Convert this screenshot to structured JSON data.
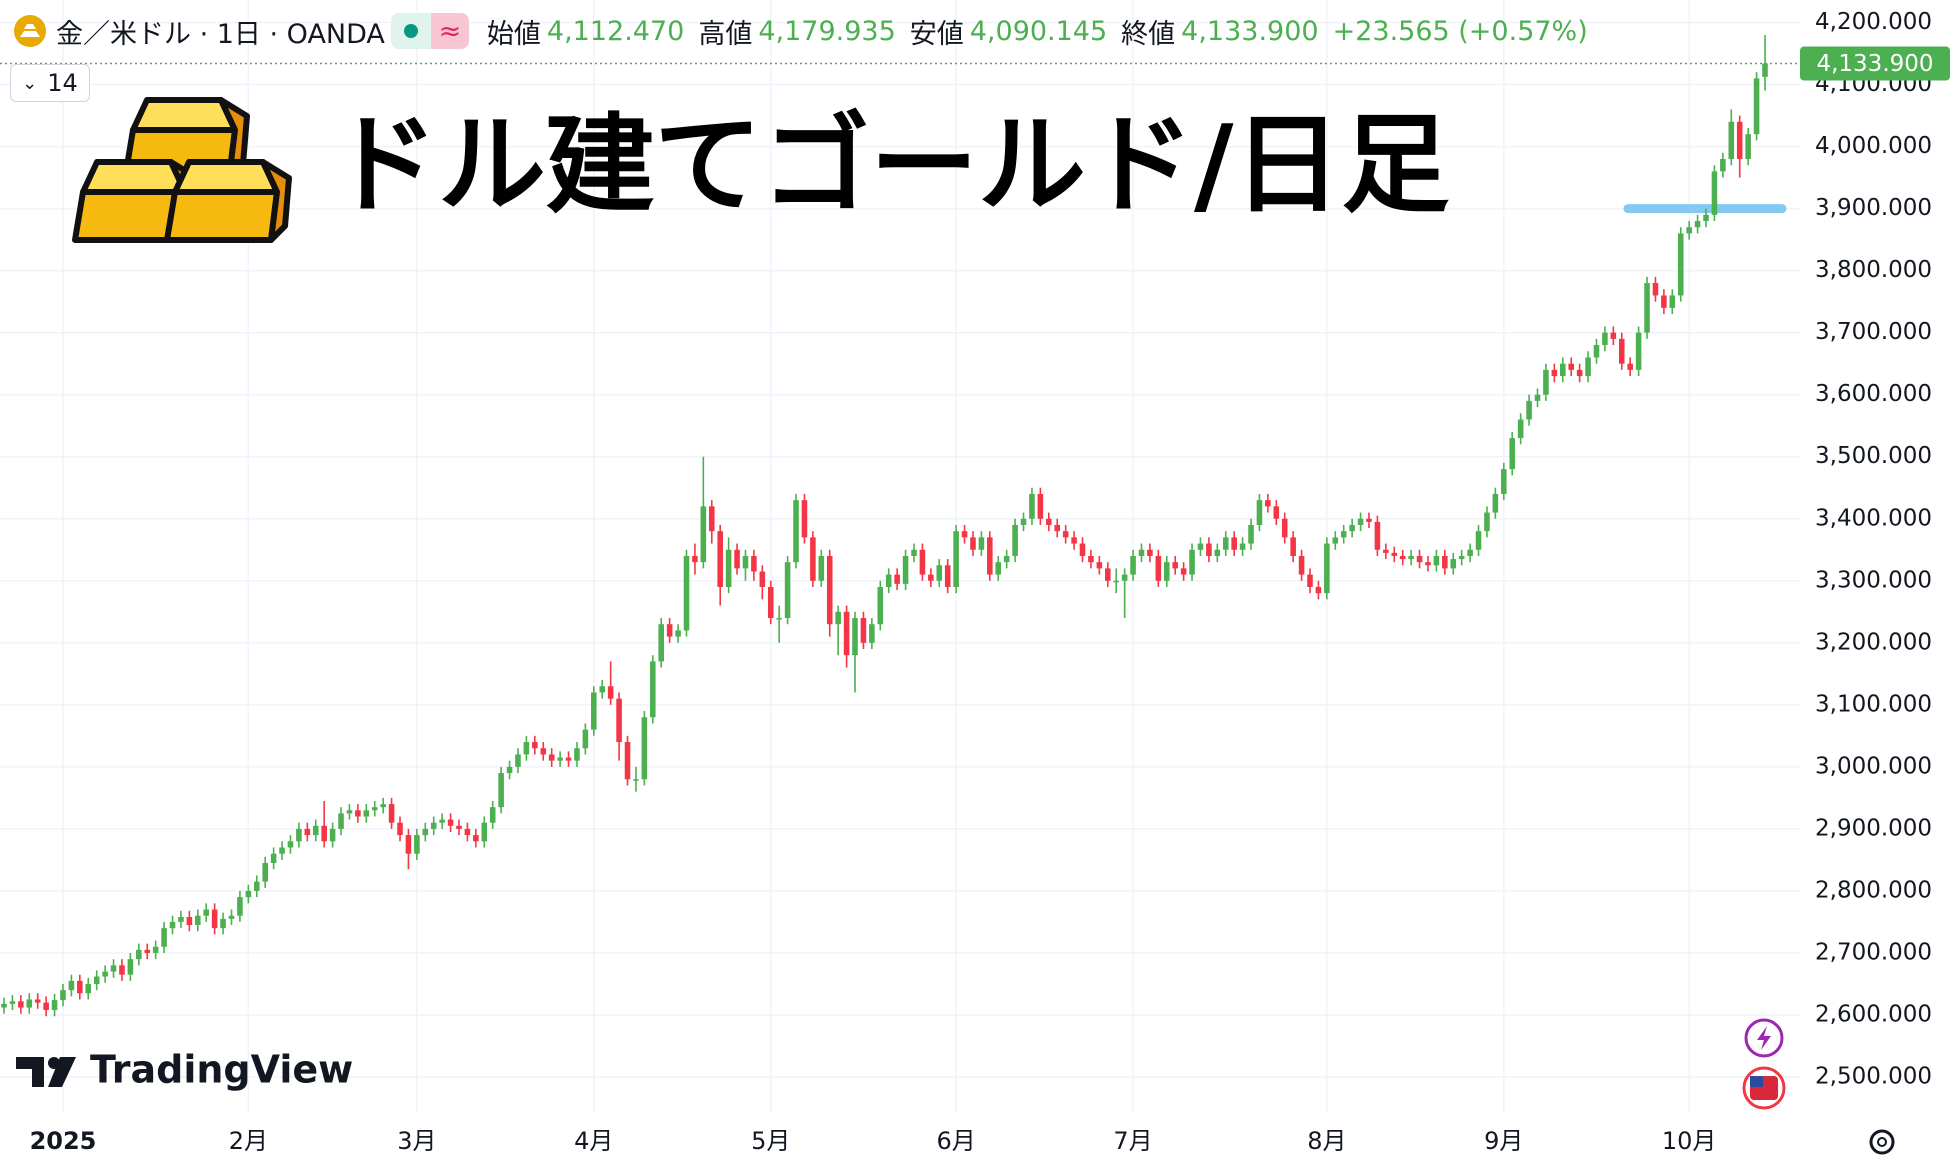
{
  "header": {
    "symbol": "金／米ドル · 1日 · OANDA",
    "badge": "≈",
    "interval": "14",
    "open_label": "始値",
    "open": "4,112.470",
    "high_label": "高値",
    "high": "4,179.935",
    "low_label": "安値",
    "low": "4,090.145",
    "close_label": "終値",
    "close": "4,133.900",
    "change": "+23.565 (+0.57%)"
  },
  "overlay_title": "ドル建てゴールド/日足",
  "logo": "TradingView",
  "chart_data": {
    "type": "candlestick",
    "up_color": "#4caf50",
    "down_color": "#f23645",
    "grid": true,
    "last_price_label": "4,133.900",
    "hline": 3900,
    "hline_color": "#85c8f2",
    "categories": [
      null,
      null,
      null,
      null,
      null,
      null,
      null,
      "2025",
      null,
      null,
      null,
      null,
      null,
      null,
      null,
      null,
      null,
      null,
      null,
      null,
      null,
      null,
      null,
      null,
      null,
      null,
      null,
      null,
      null,
      "2月",
      null,
      null,
      null,
      null,
      null,
      null,
      null,
      null,
      null,
      null,
      null,
      null,
      null,
      null,
      null,
      null,
      null,
      null,
      null,
      "3月",
      null,
      null,
      null,
      null,
      null,
      null,
      null,
      null,
      null,
      null,
      null,
      null,
      null,
      null,
      null,
      null,
      null,
      null,
      null,
      null,
      "4月",
      null,
      null,
      null,
      null,
      null,
      null,
      null,
      null,
      null,
      null,
      null,
      null,
      null,
      null,
      null,
      null,
      null,
      null,
      null,
      null,
      "5月",
      null,
      null,
      null,
      null,
      null,
      null,
      null,
      null,
      null,
      null,
      null,
      null,
      null,
      null,
      null,
      null,
      null,
      null,
      null,
      null,
      null,
      "6月",
      null,
      null,
      null,
      null,
      null,
      null,
      null,
      null,
      null,
      null,
      null,
      null,
      null,
      null,
      null,
      null,
      null,
      null,
      null,
      null,
      "7月",
      null,
      null,
      null,
      null,
      null,
      null,
      null,
      null,
      null,
      null,
      null,
      null,
      null,
      null,
      null,
      null,
      null,
      null,
      null,
      null,
      null,
      null,
      "8月",
      null,
      null,
      null,
      null,
      null,
      null,
      null,
      null,
      null,
      null,
      null,
      null,
      null,
      null,
      null,
      null,
      null,
      null,
      null,
      null,
      "9月",
      null,
      null,
      null,
      null,
      null,
      null,
      null,
      null,
      null,
      null,
      null,
      null,
      null,
      null,
      null,
      null,
      null,
      null,
      null,
      null,
      null,
      "10月",
      null,
      null,
      null,
      null,
      null,
      null,
      null,
      null,
      null
    ],
    "open": [
      2612,
      2618,
      2622,
      2612,
      2625,
      2620,
      2608,
      2624,
      2640,
      2655,
      2635,
      2650,
      2662,
      2670,
      2680,
      2665,
      2690,
      2705,
      2700,
      2710,
      2740,
      2750,
      2758,
      2745,
      2760,
      2770,
      2740,
      2755,
      2760,
      2790,
      2800,
      2815,
      2845,
      2860,
      2870,
      2880,
      2900,
      2890,
      2905,
      2880,
      2900,
      2925,
      2930,
      2920,
      2930,
      2935,
      2940,
      2910,
      2890,
      2860,
      2890,
      2900,
      2910,
      2915,
      2905,
      2900,
      2890,
      2880,
      2910,
      2935,
      2990,
      3000,
      3020,
      3040,
      3030,
      3020,
      3010,
      3015,
      3010,
      3030,
      3060,
      3120,
      3130,
      3110,
      3040,
      2980,
      2980,
      3080,
      3170,
      3230,
      3210,
      3220,
      3340,
      3330,
      3420,
      3380,
      3290,
      3350,
      3320,
      3340,
      3315,
      3290,
      3240,
      3240,
      3330,
      3430,
      3370,
      3300,
      3340,
      3230,
      3250,
      3180,
      3240,
      3200,
      3230,
      3290,
      3310,
      3295,
      3340,
      3350,
      3310,
      3300,
      3325,
      3290,
      3380,
      3370,
      3350,
      3370,
      3310,
      3330,
      3340,
      3390,
      3400,
      3440,
      3400,
      3390,
      3380,
      3370,
      3360,
      3340,
      3330,
      3320,
      3300,
      3300,
      3310,
      3340,
      3350,
      3340,
      3300,
      3330,
      3320,
      3310,
      3350,
      3360,
      3340,
      3350,
      3370,
      3350,
      3360,
      3390,
      3430,
      3420,
      3400,
      3370,
      3340,
      3310,
      3290,
      3280,
      3360,
      3370,
      3380,
      3390,
      3400,
      3395,
      3350,
      3345,
      3340,
      3335,
      3340,
      3330,
      3325,
      3340,
      3320,
      3335,
      3340,
      3350,
      3380,
      3410,
      3440,
      3480,
      3530,
      3560,
      3590,
      3600,
      3640,
      3630,
      3650,
      3640,
      3630,
      3660,
      3680,
      3700,
      3690,
      3650,
      3640,
      3700,
      3780,
      3760,
      3740,
      3760,
      3860,
      3870,
      3880,
      3890,
      3960,
      3980,
      4040,
      3980,
      4020,
      4112.47
    ],
    "high": [
      2628,
      2632,
      2632,
      2635,
      2635,
      2630,
      2634,
      2650,
      2665,
      2665,
      2660,
      2672,
      2680,
      2690,
      2690,
      2700,
      2715,
      2715,
      2720,
      2750,
      2760,
      2768,
      2768,
      2770,
      2780,
      2780,
      2765,
      2770,
      2800,
      2810,
      2825,
      2855,
      2870,
      2880,
      2890,
      2910,
      2910,
      2915,
      2945,
      2910,
      2935,
      2940,
      2940,
      2940,
      2945,
      2950,
      2950,
      2920,
      2900,
      2900,
      2910,
      2920,
      2925,
      2925,
      2915,
      2910,
      2900,
      2920,
      2945,
      3000,
      3010,
      3030,
      3050,
      3050,
      3040,
      3030,
      3025,
      3025,
      3040,
      3070,
      3130,
      3140,
      3170,
      3120,
      3050,
      3000,
      3090,
      3180,
      3240,
      3240,
      3230,
      3350,
      3360,
      3500,
      3430,
      3390,
      3370,
      3360,
      3350,
      3350,
      3325,
      3300,
      3260,
      3340,
      3440,
      3440,
      3380,
      3350,
      3350,
      3260,
      3260,
      3250,
      3250,
      3240,
      3300,
      3320,
      3320,
      3350,
      3360,
      3360,
      3320,
      3335,
      3335,
      3390,
      3390,
      3380,
      3380,
      3380,
      3340,
      3350,
      3400,
      3410,
      3450,
      3450,
      3410,
      3400,
      3390,
      3380,
      3370,
      3350,
      3340,
      3330,
      3320,
      3320,
      3350,
      3360,
      3360,
      3350,
      3340,
      3340,
      3330,
      3360,
      3370,
      3370,
      3360,
      3380,
      3380,
      3370,
      3400,
      3440,
      3440,
      3430,
      3410,
      3380,
      3350,
      3320,
      3300,
      3370,
      3380,
      3390,
      3400,
      3410,
      3410,
      3405,
      3360,
      3355,
      3350,
      3350,
      3350,
      3340,
      3350,
      3350,
      3345,
      3350,
      3360,
      3390,
      3420,
      3450,
      3490,
      3540,
      3570,
      3600,
      3610,
      3650,
      3650,
      3660,
      3660,
      3650,
      3670,
      3690,
      3710,
      3710,
      3700,
      3660,
      3710,
      3790,
      3790,
      3770,
      3770,
      3870,
      3880,
      3890,
      3900,
      3970,
      3990,
      4060,
      4050,
      4030,
      4120,
      4179.935
    ],
    "low": [
      2602,
      2608,
      2602,
      2602,
      2610,
      2598,
      2598,
      2614,
      2630,
      2625,
      2625,
      2640,
      2652,
      2660,
      2655,
      2655,
      2680,
      2690,
      2690,
      2700,
      2730,
      2740,
      2735,
      2735,
      2750,
      2730,
      2730,
      2745,
      2750,
      2780,
      2790,
      2805,
      2835,
      2850,
      2860,
      2870,
      2880,
      2880,
      2870,
      2870,
      2890,
      2915,
      2910,
      2910,
      2920,
      2925,
      2900,
      2880,
      2835,
      2850,
      2880,
      2890,
      2900,
      2895,
      2890,
      2880,
      2870,
      2870,
      2900,
      2925,
      2980,
      2990,
      3010,
      3020,
      3010,
      3000,
      3000,
      3000,
      3000,
      3020,
      3050,
      3110,
      3100,
      3010,
      2970,
      2960,
      2970,
      3070,
      3160,
      3200,
      3200,
      3210,
      3310,
      3320,
      3360,
      3260,
      3280,
      3310,
      3300,
      3300,
      3270,
      3230,
      3200,
      3230,
      3320,
      3360,
      3290,
      3290,
      3210,
      3180,
      3160,
      3120,
      3190,
      3190,
      3220,
      3280,
      3285,
      3285,
      3330,
      3300,
      3290,
      3290,
      3280,
      3280,
      3360,
      3340,
      3340,
      3300,
      3300,
      3320,
      3330,
      3380,
      3390,
      3390,
      3380,
      3370,
      3360,
      3350,
      3330,
      3320,
      3310,
      3290,
      3280,
      3240,
      3300,
      3330,
      3330,
      3290,
      3290,
      3310,
      3300,
      3300,
      3340,
      3330,
      3330,
      3340,
      3340,
      3340,
      3350,
      3380,
      3410,
      3390,
      3360,
      3330,
      3300,
      3280,
      3270,
      3270,
      3350,
      3360,
      3370,
      3380,
      3385,
      3340,
      3335,
      3330,
      3325,
      3325,
      3320,
      3315,
      3315,
      3310,
      3310,
      3325,
      3330,
      3340,
      3370,
      3400,
      3430,
      3470,
      3520,
      3550,
      3580,
      3590,
      3620,
      3620,
      3630,
      3620,
      3620,
      3650,
      3670,
      3680,
      3640,
      3630,
      3630,
      3690,
      3750,
      3730,
      3730,
      3750,
      3850,
      3860,
      3870,
      3880,
      3950,
      3970,
      3950,
      3970,
      4010,
      4090.145
    ],
    "close": [
      2618,
      2622,
      2612,
      2625,
      2620,
      2608,
      2624,
      2640,
      2655,
      2635,
      2650,
      2662,
      2670,
      2680,
      2665,
      2690,
      2705,
      2700,
      2710,
      2740,
      2750,
      2758,
      2745,
      2760,
      2770,
      2740,
      2755,
      2760,
      2790,
      2800,
      2815,
      2845,
      2860,
      2870,
      2880,
      2900,
      2890,
      2905,
      2880,
      2900,
      2925,
      2930,
      2920,
      2930,
      2935,
      2940,
      2910,
      2890,
      2860,
      2890,
      2900,
      2910,
      2915,
      2905,
      2900,
      2890,
      2880,
      2910,
      2935,
      2990,
      3000,
      3020,
      3040,
      3030,
      3020,
      3010,
      3015,
      3010,
      3030,
      3060,
      3120,
      3130,
      3110,
      3040,
      2980,
      2980,
      3080,
      3170,
      3230,
      3210,
      3220,
      3340,
      3330,
      3420,
      3380,
      3290,
      3350,
      3320,
      3340,
      3315,
      3290,
      3240,
      3240,
      3330,
      3430,
      3370,
      3300,
      3340,
      3230,
      3250,
      3180,
      3240,
      3200,
      3230,
      3290,
      3310,
      3295,
      3340,
      3350,
      3310,
      3300,
      3325,
      3290,
      3380,
      3370,
      3350,
      3370,
      3310,
      3330,
      3340,
      3390,
      3400,
      3440,
      3400,
      3390,
      3380,
      3370,
      3360,
      3340,
      3330,
      3320,
      3300,
      3300,
      3310,
      3340,
      3350,
      3340,
      3300,
      3330,
      3320,
      3310,
      3350,
      3360,
      3340,
      3350,
      3370,
      3350,
      3360,
      3390,
      3430,
      3420,
      3400,
      3370,
      3340,
      3310,
      3290,
      3280,
      3360,
      3370,
      3380,
      3390,
      3400,
      3395,
      3350,
      3345,
      3340,
      3335,
      3340,
      3330,
      3325,
      3340,
      3320,
      3335,
      3340,
      3350,
      3380,
      3410,
      3440,
      3480,
      3530,
      3560,
      3590,
      3600,
      3640,
      3630,
      3650,
      3640,
      3630,
      3660,
      3680,
      3700,
      3690,
      3650,
      3640,
      3700,
      3780,
      3760,
      3740,
      3760,
      3860,
      3870,
      3880,
      3890,
      3960,
      3980,
      4040,
      3980,
      4020,
      4110,
      4133.9
    ],
    "ylim": [
      2443.6,
      4236.3
    ],
    "yticks": [
      {
        "value": 2500,
        "label": "2,500.000"
      },
      {
        "value": 2600,
        "label": "2,600.000"
      },
      {
        "value": 2700,
        "label": "2,700.000"
      },
      {
        "value": 2800,
        "label": "2,800.000"
      },
      {
        "value": 2900,
        "label": "2,900.000"
      },
      {
        "value": 3000,
        "label": "3,000.000"
      },
      {
        "value": 3100,
        "label": "3,100.000"
      },
      {
        "value": 3200,
        "label": "3,200.000"
      },
      {
        "value": 3300,
        "label": "3,300.000"
      },
      {
        "value": 3400,
        "label": "3,400.000"
      },
      {
        "value": 3500,
        "label": "3,500.000"
      },
      {
        "value": 3600,
        "label": "3,600.000"
      },
      {
        "value": 3700,
        "label": "3,700.000"
      },
      {
        "value": 3800,
        "label": "3,800.000"
      },
      {
        "value": 3900,
        "label": "3,900.000"
      },
      {
        "value": 4000,
        "label": "4,000.000"
      },
      {
        "value": 4100,
        "label": "4,100.000"
      },
      {
        "value": 4200,
        "label": "4,200.000"
      }
    ]
  }
}
